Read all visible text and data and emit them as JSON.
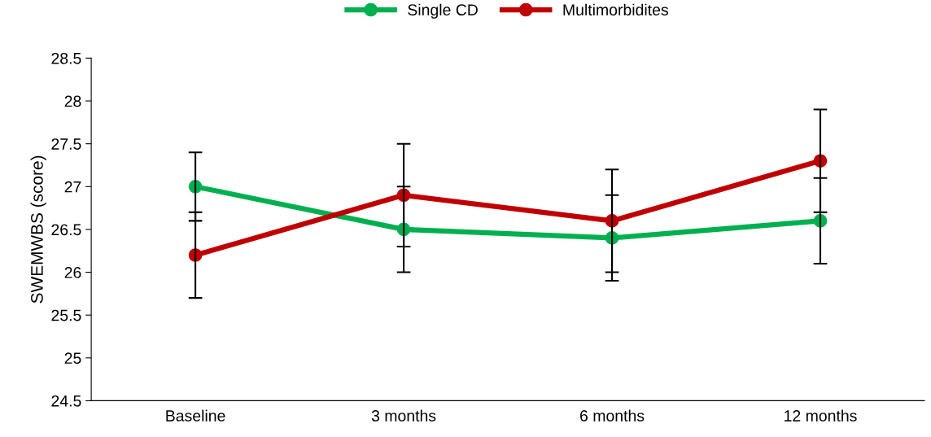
{
  "chart_data": {
    "type": "line",
    "ylabel": "SWEMWBS (score)",
    "categories": [
      "Baseline",
      "3 months",
      "6 months",
      "12 months"
    ],
    "series": [
      {
        "name": "Single CD",
        "color": "#00b050",
        "values": [
          27.0,
          26.5,
          26.4,
          26.6
        ],
        "errors": [
          0.4,
          0.5,
          0.5,
          0.5
        ]
      },
      {
        "name": "Multimorbidites",
        "color": "#c00000",
        "values": [
          26.2,
          26.9,
          26.6,
          27.3
        ],
        "errors": [
          0.5,
          0.6,
          0.6,
          0.6
        ]
      }
    ],
    "ylim": [
      24.5,
      28.5
    ],
    "yticks": [
      24.5,
      25,
      25.5,
      26,
      26.5,
      27,
      27.5,
      28,
      28.5
    ],
    "grid": false,
    "legend": "top",
    "marker": "circle",
    "line_style": "solid"
  }
}
